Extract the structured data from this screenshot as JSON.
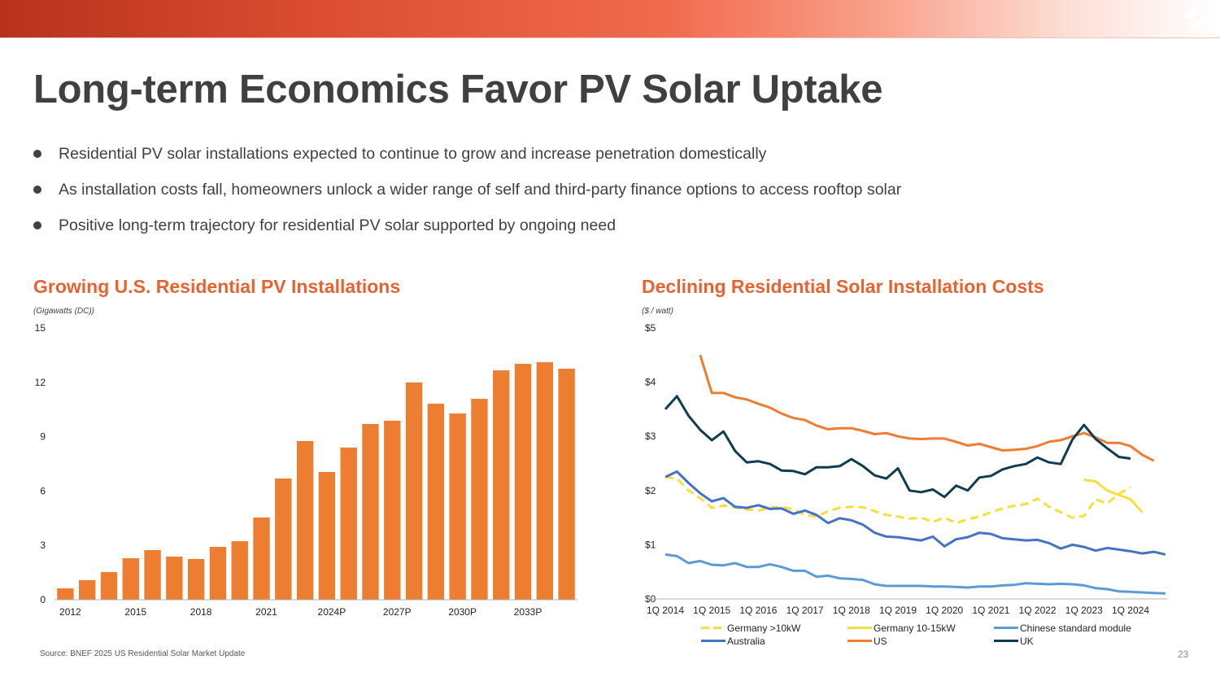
{
  "header": {
    "title": "Long-term Economics Favor PV Solar Uptake",
    "logo_icon": "slash-logo-icon"
  },
  "bullets": [
    "Residential PV solar installations expected to continue to grow and increase penetration domestically",
    "As installation costs fall, homeowners unlock a wider range of self and third-party finance options to access rooftop solar",
    "Positive long-term trajectory for residential PV solar supported by ongoing need"
  ],
  "footer": {
    "source": "Source:  BNEF 2025 US Residential Solar Market Update",
    "page_number": "23"
  },
  "colors": {
    "accent": "#e8632f",
    "bar": "#ed7d31"
  },
  "chart_data": [
    {
      "type": "bar",
      "title": "Growing U.S. Residential PV Installations",
      "ylabel": "(Gigawatts (DC))",
      "xlabel": "",
      "ylim": [
        0,
        15
      ],
      "yticks": [
        0,
        3,
        6,
        9,
        12,
        15
      ],
      "grid": false,
      "categories": [
        "2012",
        "2013",
        "2014",
        "2015",
        "2016",
        "2017",
        "2018",
        "2019",
        "2020",
        "2021",
        "2022",
        "2023",
        "2024P",
        "2025P",
        "2026P",
        "2027P",
        "2028P",
        "2029P",
        "2030P",
        "2031P",
        "2032P",
        "2033P",
        "2034P",
        "2035P"
      ],
      "xtick_labels": [
        "2012",
        "2015",
        "2018",
        "2021",
        "2024P",
        "2027P",
        "2030P",
        "2033P"
      ],
      "values": [
        0.63,
        1.08,
        1.53,
        2.29,
        2.74,
        2.38,
        2.25,
        2.92,
        3.23,
        4.54,
        6.69,
        8.76,
        7.05,
        8.4,
        9.7,
        9.88,
        11.99,
        10.82,
        10.28,
        11.09,
        12.66,
        13.02,
        13.11,
        12.75
      ],
      "color": "#ed7d31"
    },
    {
      "type": "line",
      "title": "Declining Residential Solar Installation Costs",
      "ylabel": "($ / watt)",
      "xlabel": "",
      "ylim": [
        0,
        5
      ],
      "yticks": [
        "$0",
        "$1",
        "$2",
        "$3",
        "$4",
        "$5"
      ],
      "grid": false,
      "x_start": "1Q 2014",
      "x_end": "4Q 2024",
      "quarters": 44,
      "xtick_labels": [
        "1Q 2014",
        "1Q 2015",
        "1Q 2016",
        "1Q 2017",
        "1Q 2018",
        "1Q 2019",
        "1Q 2020",
        "1Q 2021",
        "1Q 2022",
        "1Q 2023",
        "1Q 2024"
      ],
      "legend_position": "bottom",
      "series": [
        {
          "name": "Germany >10kW",
          "color": "#f5e03a",
          "dashed": true,
          "start_index": 0,
          "values": [
            2.25,
            2.22,
            2.0,
            1.86,
            1.68,
            1.72,
            1.69,
            1.65,
            1.63,
            1.68,
            1.7,
            1.65,
            1.55,
            1.52,
            1.62,
            1.68,
            1.7,
            1.69,
            1.62,
            1.55,
            1.52,
            1.48,
            1.5,
            1.42,
            1.5,
            1.4,
            1.47,
            1.52,
            1.6,
            1.67,
            1.72,
            1.75,
            1.85,
            1.7,
            1.6,
            1.5,
            1.53,
            1.84,
            1.76,
            1.94,
            2.06
          ]
        },
        {
          "name": "Germany 10-15kW",
          "color": "#f5e03a",
          "dashed": false,
          "start_index": 36,
          "values": [
            2.2,
            2.17,
            2.0,
            1.92,
            1.84,
            1.6
          ]
        },
        {
          "name": "Chinese standard module",
          "color": "#5b9bd5",
          "dashed": false,
          "start_index": 0,
          "values": [
            0.82,
            0.79,
            0.66,
            0.7,
            0.63,
            0.62,
            0.66,
            0.59,
            0.59,
            0.64,
            0.59,
            0.52,
            0.52,
            0.41,
            0.43,
            0.38,
            0.37,
            0.35,
            0.27,
            0.24,
            0.24,
            0.24,
            0.24,
            0.23,
            0.23,
            0.22,
            0.21,
            0.23,
            0.23,
            0.25,
            0.26,
            0.29,
            0.28,
            0.27,
            0.28,
            0.27,
            0.25,
            0.2,
            0.18,
            0.14,
            0.13,
            0.12,
            0.11,
            0.1
          ]
        },
        {
          "name": "Australia",
          "color": "#4472c4",
          "dashed": false,
          "start_index": 0,
          "values": [
            2.25,
            2.35,
            2.14,
            1.95,
            1.8,
            1.86,
            1.7,
            1.68,
            1.73,
            1.66,
            1.67,
            1.57,
            1.63,
            1.55,
            1.4,
            1.49,
            1.45,
            1.37,
            1.22,
            1.15,
            1.14,
            1.11,
            1.08,
            1.15,
            0.97,
            1.1,
            1.14,
            1.22,
            1.2,
            1.12,
            1.1,
            1.08,
            1.09,
            1.03,
            0.93,
            1.0,
            0.96,
            0.89,
            0.94,
            0.91,
            0.88,
            0.84,
            0.87,
            0.82
          ]
        },
        {
          "name": "US",
          "color": "#ed7d31",
          "dashed": false,
          "start_index": 3,
          "values": [
            4.5,
            3.8,
            3.8,
            3.72,
            3.68,
            3.6,
            3.53,
            3.42,
            3.34,
            3.3,
            3.2,
            3.13,
            3.15,
            3.15,
            3.1,
            3.04,
            3.06,
            3.0,
            2.96,
            2.95,
            2.96,
            2.96,
            2.9,
            2.83,
            2.86,
            2.8,
            2.74,
            2.75,
            2.77,
            2.82,
            2.9,
            2.93,
            3.0,
            3.06,
            2.98,
            2.88,
            2.88,
            2.82,
            2.66,
            2.55
          ]
        },
        {
          "name": "UK",
          "color": "#0e3d52",
          "dashed": false,
          "start_index": 0,
          "values": [
            3.5,
            3.74,
            3.38,
            3.12,
            2.93,
            3.09,
            2.73,
            2.52,
            2.54,
            2.49,
            2.37,
            2.36,
            2.3,
            2.43,
            2.43,
            2.45,
            2.58,
            2.45,
            2.28,
            2.22,
            2.41,
            2.0,
            1.97,
            2.02,
            1.88,
            2.09,
            2.0,
            2.24,
            2.27,
            2.39,
            2.45,
            2.49,
            2.61,
            2.52,
            2.49,
            2.94,
            3.21,
            2.95,
            2.78,
            2.62,
            2.59
          ]
        }
      ]
    }
  ]
}
